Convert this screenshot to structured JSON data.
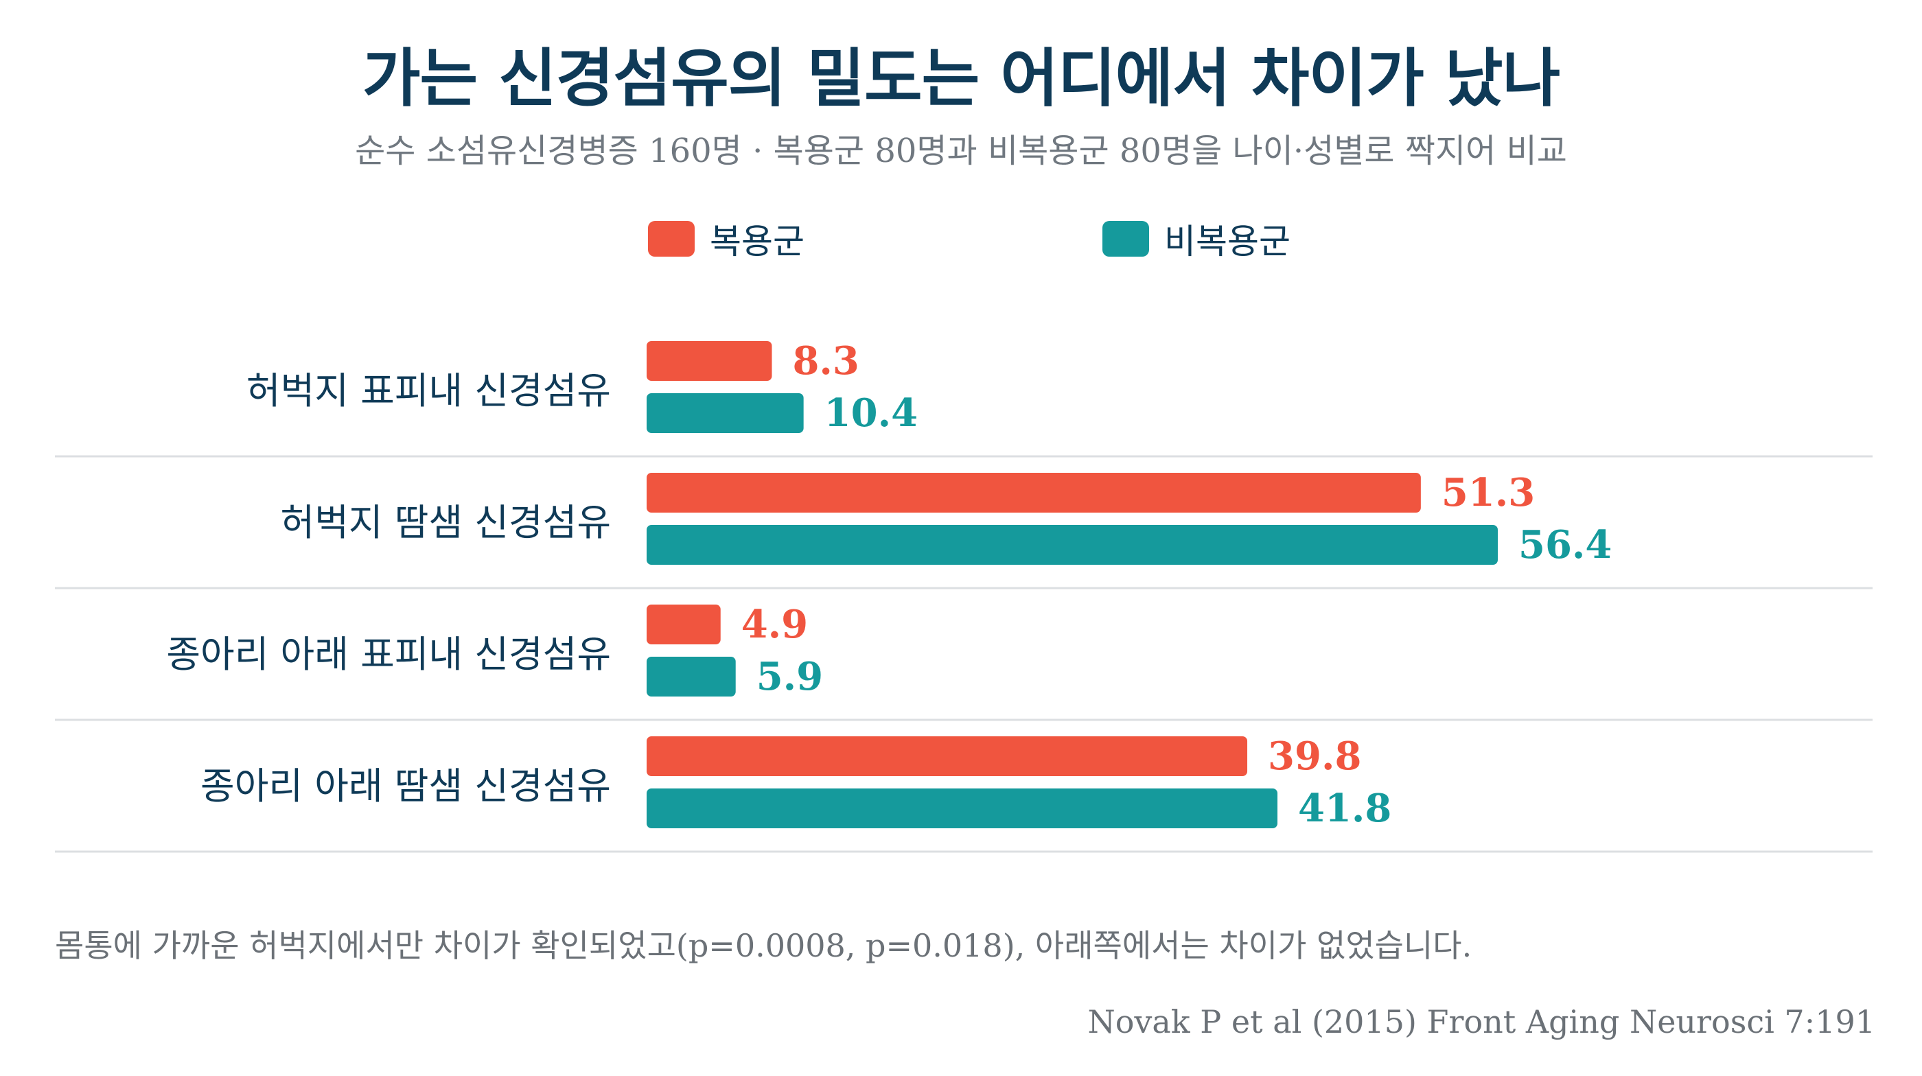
{
  "title": "가는 신경섬유의 밀도는 어디에서 차이가 났나",
  "subtitle": "순수 소섬유신경병증 160명 · 복용군 80명과 비복용군 80명을 나이·성별로 짝지어 비교",
  "footnote": "몸통에 가까운 허벅지에서만 차이가 확인되었고(p=0.0008, p=0.018), 아래쪽에서는 차이가 없었습니다.",
  "source": "Novak P et al (2015) Front Aging Neurosci 7:191",
  "colors": {
    "series1": "#f0553f",
    "series2": "#159a9c",
    "grid": "#dcdfe2",
    "text": "#0f3a57"
  },
  "chart_data": {
    "type": "bar",
    "orientation": "horizontal",
    "categories": [
      "허벅지 표피내 신경섬유",
      "허벅지 땀샘 신경섬유",
      "종아리 아래 표피내 신경섬유",
      "종아리 아래 땀샘 신경섬유"
    ],
    "series": [
      {
        "name": "복용군",
        "values": [
          8.3,
          51.3,
          4.9,
          39.8
        ],
        "labels": [
          "8.3",
          "51.3",
          "4.9",
          "39.8"
        ],
        "color": "#f0553f"
      },
      {
        "name": "비복용군",
        "values": [
          10.4,
          56.4,
          5.9,
          41.8
        ],
        "labels": [
          "10.4",
          "56.4",
          "5.9",
          "41.8"
        ],
        "color": "#159a9c"
      }
    ],
    "xlim": [
      0,
      90
    ],
    "grid": false,
    "legend_position": "top-center",
    "data_labels": true
  }
}
